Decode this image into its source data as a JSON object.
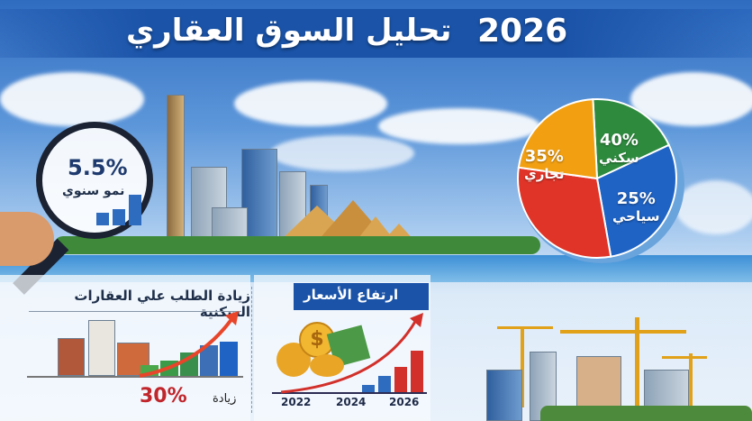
{
  "header": {
    "year": "2026",
    "title": "تحليل السوق العقاري"
  },
  "growth": {
    "value": "5.5%",
    "label": "نمو سنوي"
  },
  "pie": {
    "slices": [
      {
        "label": "سكني",
        "value": "40%",
        "color": "#2e8b3e"
      },
      {
        "label": "سياحي",
        "value": "25%",
        "color": "#1f63c4"
      },
      {
        "label": "",
        "value": "",
        "color": "#e03428"
      },
      {
        "label": "تجاري",
        "value": "35%",
        "color": "#f2a012"
      }
    ]
  },
  "demand": {
    "title": "زيادة الطلب علي العقارات السكنية",
    "increase_label": "زيادة",
    "increase_value": "30%"
  },
  "prices": {
    "title": "ارتفاع الأسعار",
    "years": [
      "2022",
      "2024",
      "2026"
    ]
  },
  "colors": {
    "band": "#1a53a8",
    "accent_red": "#c0262c",
    "arrow": "#e8452a"
  }
}
